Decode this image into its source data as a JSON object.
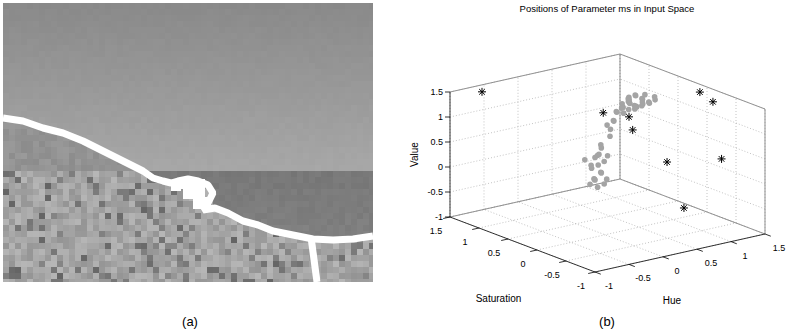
{
  "panel_labels": [
    "(a)",
    "(b)"
  ],
  "chart_data": {
    "type": "scatter3d",
    "title": "Positions of Parameter ms in Input Space",
    "x_label": "Hue",
    "y_label": "Saturation",
    "z_label": "Value",
    "xlim": [
      -1,
      1.5
    ],
    "xticks": [
      -1,
      -0.5,
      0,
      0.5,
      1,
      1.5
    ],
    "ylim": [
      -1,
      1.5
    ],
    "yticks": [
      -1,
      -0.5,
      0,
      0.5,
      1,
      1.5
    ],
    "zlim": [
      -1,
      1.5
    ],
    "zticks": [
      -1,
      -0.5,
      0,
      0.5,
      1,
      1.5
    ],
    "grid": true,
    "series": [
      {
        "marker": "point",
        "color": "#a4a4a4",
        "x": [
          0.55,
          0.6,
          0.65,
          0.7,
          0.75,
          0.8,
          0.85,
          0.9,
          0.6,
          0.65,
          0.7,
          0.75,
          0.8,
          0.85,
          0.5,
          0.55,
          0.6,
          0.7,
          0.8,
          0.9,
          0.95,
          0.72,
          0.62,
          0.68,
          0.78,
          0.88,
          0.58,
          0.66,
          0.74,
          0.84,
          0.55,
          0.5,
          0.55,
          0.5,
          0.6,
          0.45,
          0.5,
          0.4,
          0.45,
          0.5,
          0.35,
          0.4,
          0.45,
          0.5,
          0.35,
          0.4,
          0.45,
          0.5,
          0.42,
          0.55,
          0.3,
          0.38,
          0.48,
          0.52,
          0.36
        ],
        "y": [
          0.35,
          0.3,
          0.35,
          0.3,
          0.35,
          0.3,
          0.35,
          0.3,
          0.4,
          0.45,
          0.4,
          0.45,
          0.4,
          0.45,
          0.3,
          0.45,
          0.5,
          0.5,
          0.25,
          0.2,
          0.25,
          0.2,
          0.22,
          0.38,
          0.28,
          0.38,
          0.28,
          0.26,
          0.46,
          0.22,
          0.5,
          0.55,
          0.55,
          0.5,
          0.55,
          0.6,
          0.65,
          0.6,
          0.7,
          0.6,
          0.65,
          0.7,
          0.6,
          0.65,
          0.6,
          0.65,
          0.7,
          0.6,
          0.62,
          0.6,
          0.7,
          0.55,
          0.68,
          0.58,
          0.68
        ],
        "z": [
          1.3,
          1.35,
          1.4,
          1.45,
          1.4,
          1.35,
          1.3,
          1.25,
          1.2,
          1.15,
          1.25,
          1.2,
          1.15,
          1.1,
          1.25,
          1.1,
          1.05,
          1.0,
          1.45,
          1.4,
          1.3,
          1.35,
          1.3,
          1.32,
          1.22,
          1.18,
          1.42,
          1.2,
          1.08,
          1.28,
          0.9,
          0.8,
          0.7,
          0.6,
          0.85,
          0.4,
          0.3,
          0.2,
          0.1,
          0.05,
          0.0,
          -0.1,
          -0.15,
          -0.2,
          -0.25,
          -0.3,
          -0.35,
          -0.4,
          -0.45,
          0.15,
          0.1,
          0.25,
          -0.05,
          -0.3,
          -0.4
        ]
      },
      {
        "marker": "asterisk",
        "color": "#000000",
        "x": [
          -0.7,
          1.31,
          1.34,
          0.52,
          1.1,
          0.47,
          0.52,
          0.66,
          0.68
        ],
        "y": [
          1.3,
          -0.1,
          -0.29,
          -0.46,
          -0.72,
          -0.81,
          0.64,
          0.36,
          0.32
        ],
        "z": [
          1.5,
          1.5,
          1.38,
          0.5,
          0.5,
          -0.25,
          1.0,
          1.0,
          0.75
        ]
      }
    ]
  }
}
